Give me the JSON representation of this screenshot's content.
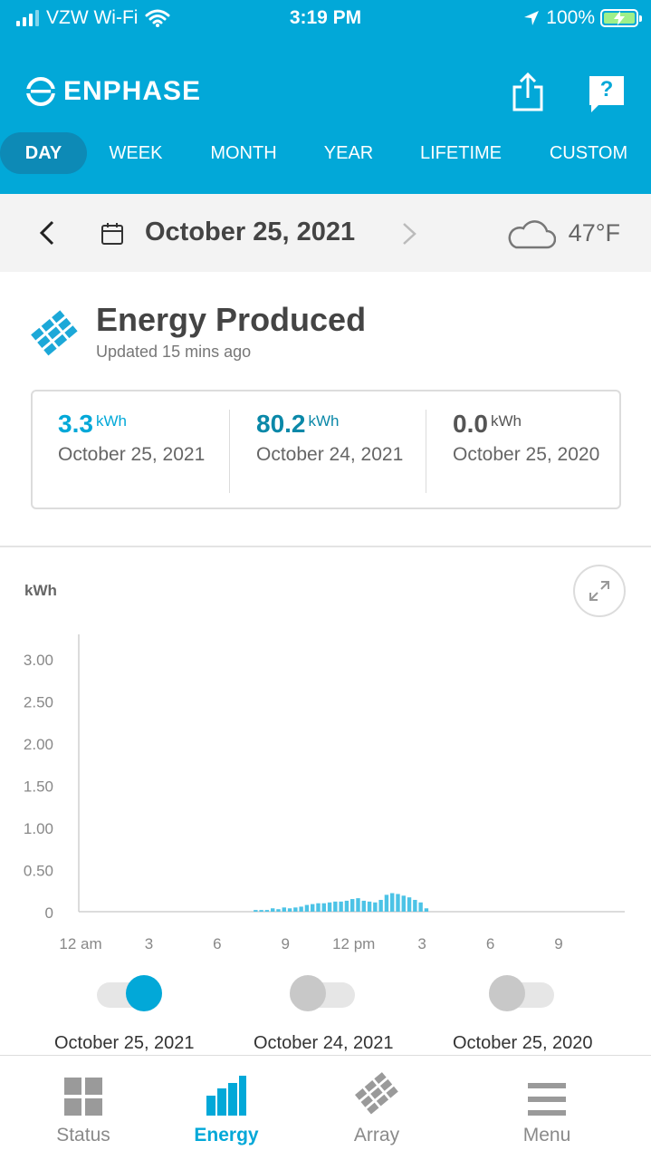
{
  "status_bar": {
    "carrier": "VZW Wi-Fi",
    "time": "3:19 PM",
    "battery": "100%",
    "icons": [
      "signal-icon",
      "wifi-icon",
      "location-icon",
      "battery-charging-icon"
    ]
  },
  "header": {
    "brand": "ENPHASE",
    "share_icon": "share-icon",
    "help_icon": "help-icon",
    "help_glyph": "?",
    "tabs": [
      {
        "label": "DAY",
        "active": true
      },
      {
        "label": "WEEK",
        "active": false
      },
      {
        "label": "MONTH",
        "active": false
      },
      {
        "label": "YEAR",
        "active": false
      },
      {
        "label": "LIFETIME",
        "active": false
      },
      {
        "label": "CUSTOM",
        "active": false
      }
    ],
    "accent_color": "#02a8d8"
  },
  "date_bar": {
    "date": "October 25, 2021",
    "temperature": "47°F",
    "weather_icon": "cloud-icon"
  },
  "energy": {
    "title": "Energy Produced",
    "updated": "Updated 15 mins ago",
    "stats": [
      {
        "value": "3.3",
        "unit": "kWh",
        "date": "October 25, 2021",
        "color": "#02a8d8"
      },
      {
        "value": "80.2",
        "unit": "kWh",
        "date": "October 24, 2021",
        "color": "#0a88a8"
      },
      {
        "value": "0.0",
        "unit": "kWh",
        "date": "October 25, 2020",
        "color": "#555555"
      }
    ]
  },
  "chart_data": {
    "type": "bar",
    "title": "",
    "xlabel": "",
    "ylabel": "kWh",
    "ylim": [
      0,
      3.3
    ],
    "y_ticks": [
      "3.00",
      "2.50",
      "2.00",
      "1.50",
      "1.00",
      "0.50",
      "0"
    ],
    "y_tick_values": [
      3.0,
      2.5,
      2.0,
      1.5,
      1.0,
      0.5,
      0
    ],
    "x_ticks": [
      {
        "label": "12 am",
        "hour": 0
      },
      {
        "label": "3",
        "hour": 3
      },
      {
        "label": "6",
        "hour": 6
      },
      {
        "label": "9",
        "hour": 9
      },
      {
        "label": "12 pm",
        "hour": 12
      },
      {
        "label": "3",
        "hour": 15
      },
      {
        "label": "6",
        "hour": 18
      },
      {
        "label": "9",
        "hour": 21
      }
    ],
    "x_range_hours": [
      0,
      24
    ],
    "bar_color": "#4cc3e6",
    "grid": false,
    "series": [
      {
        "values": [
          {
            "hour": 8.0,
            "value": 0.02
          },
          {
            "hour": 8.25,
            "value": 0.02
          },
          {
            "hour": 8.5,
            "value": 0.02
          },
          {
            "hour": 8.75,
            "value": 0.04
          },
          {
            "hour": 9.0,
            "value": 0.03
          },
          {
            "hour": 9.25,
            "value": 0.05
          },
          {
            "hour": 9.5,
            "value": 0.04
          },
          {
            "hour": 9.75,
            "value": 0.05
          },
          {
            "hour": 10.0,
            "value": 0.06
          },
          {
            "hour": 10.25,
            "value": 0.08
          },
          {
            "hour": 10.5,
            "value": 0.09
          },
          {
            "hour": 10.75,
            "value": 0.1
          },
          {
            "hour": 11.0,
            "value": 0.1
          },
          {
            "hour": 11.25,
            "value": 0.11
          },
          {
            "hour": 11.5,
            "value": 0.12
          },
          {
            "hour": 11.75,
            "value": 0.12
          },
          {
            "hour": 12.0,
            "value": 0.13
          },
          {
            "hour": 12.25,
            "value": 0.15
          },
          {
            "hour": 12.5,
            "value": 0.16
          },
          {
            "hour": 12.75,
            "value": 0.13
          },
          {
            "hour": 13.0,
            "value": 0.12
          },
          {
            "hour": 13.25,
            "value": 0.11
          },
          {
            "hour": 13.5,
            "value": 0.14
          },
          {
            "hour": 13.75,
            "value": 0.2
          },
          {
            "hour": 14.0,
            "value": 0.22
          },
          {
            "hour": 14.25,
            "value": 0.21
          },
          {
            "hour": 14.5,
            "value": 0.19
          },
          {
            "hour": 14.75,
            "value": 0.17
          },
          {
            "hour": 15.0,
            "value": 0.14
          },
          {
            "hour": 15.25,
            "value": 0.11
          },
          {
            "hour": 15.5,
            "value": 0.04
          }
        ]
      }
    ]
  },
  "toggles": [
    {
      "label": "October 25, 2021",
      "on": true,
      "color": "#02a8d8"
    },
    {
      "label": "October 24, 2021",
      "on": false,
      "color": "#c8c8c8"
    },
    {
      "label": "October 25, 2020",
      "on": false,
      "color": "#c8c8c8"
    }
  ],
  "bottom_nav": [
    {
      "label": "Status",
      "icon": "grid-icon",
      "active": false
    },
    {
      "label": "Energy",
      "icon": "bar-chart-icon",
      "active": true
    },
    {
      "label": "Array",
      "icon": "solar-array-icon",
      "active": false
    },
    {
      "label": "Menu",
      "icon": "hamburger-icon",
      "active": false
    }
  ]
}
